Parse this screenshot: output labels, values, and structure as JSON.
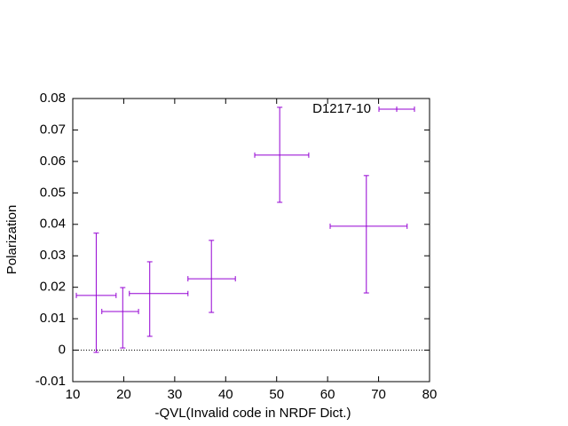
{
  "chart_data": {
    "type": "errorbar",
    "x_label": "-QVL(Invalid code in NRDF Dict.)",
    "y_label": "Polarization",
    "xlim": [
      10,
      80
    ],
    "xticks": [
      10,
      20,
      30,
      40,
      50,
      60,
      70,
      80
    ],
    "ylim": [
      -0.01,
      0.08
    ],
    "yticks": [
      -0.01,
      0,
      0.01,
      0.02,
      0.03,
      0.04,
      0.05,
      0.06,
      0.07,
      0.08
    ],
    "zero_line": true,
    "legend": "top-right",
    "series": [
      {
        "name": "D1217-10",
        "color": "#9400d3",
        "x": [
          14.6,
          19.8,
          25.1,
          37.2,
          50.6,
          67.6
        ],
        "xlow": [
          10.7,
          15.7,
          21.1,
          32.6,
          45.7,
          60.5
        ],
        "xhigh": [
          18.5,
          22.9,
          32.6,
          41.9,
          56.3,
          75.6
        ],
        "values": [
          0.0174,
          0.0123,
          0.018,
          0.0227,
          0.062,
          0.0394
        ],
        "ylow": [
          -0.0007,
          0.0007,
          0.0044,
          0.012,
          0.047,
          0.0182
        ],
        "yhigh": [
          0.0372,
          0.0199,
          0.0281,
          0.0349,
          0.0772,
          0.0555
        ]
      }
    ]
  }
}
